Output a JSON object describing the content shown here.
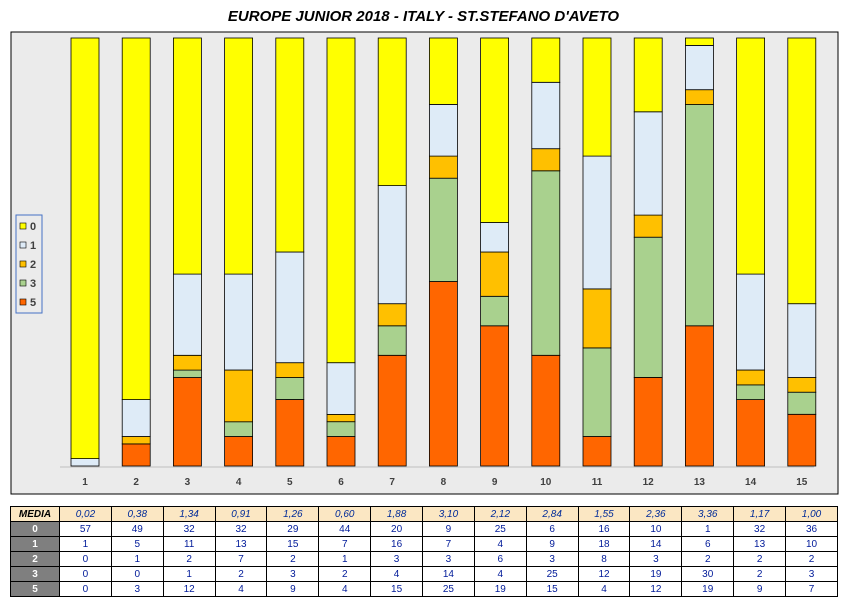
{
  "chart_data": {
    "type": "bar",
    "stacked": true,
    "title": "EUROPE JUNIOR 2018 - ITALY - ST.STEFANO D'AVETO",
    "categories": [
      "1",
      "2",
      "3",
      "4",
      "5",
      "6",
      "7",
      "8",
      "9",
      "10",
      "11",
      "12",
      "13",
      "14",
      "15"
    ],
    "ylim": [
      0,
      58
    ],
    "grid": false,
    "legend": "left",
    "series": [
      {
        "name": "5",
        "color": "#ff6600",
        "values": [
          0,
          3,
          12,
          4,
          9,
          4,
          15,
          25,
          19,
          15,
          4,
          12,
          19,
          9,
          7
        ]
      },
      {
        "name": "3",
        "color": "#a9d18e",
        "values": [
          0,
          0,
          1,
          2,
          3,
          2,
          4,
          14,
          4,
          25,
          12,
          19,
          30,
          2,
          3
        ]
      },
      {
        "name": "2",
        "color": "#ffc000",
        "values": [
          0,
          1,
          2,
          7,
          2,
          1,
          3,
          3,
          6,
          3,
          8,
          3,
          2,
          2,
          2
        ]
      },
      {
        "name": "1",
        "color": "#deebf7",
        "values": [
          1,
          5,
          11,
          13,
          15,
          7,
          16,
          7,
          4,
          9,
          18,
          14,
          6,
          13,
          10
        ]
      },
      {
        "name": "0",
        "color": "#ffff00",
        "values": [
          57,
          49,
          32,
          32,
          29,
          44,
          20,
          9,
          25,
          6,
          16,
          10,
          1,
          32,
          36
        ]
      }
    ]
  },
  "legend_items": [
    {
      "label": "0",
      "color": "#ffff00"
    },
    {
      "label": "1",
      "color": "#deebf7"
    },
    {
      "label": "2",
      "color": "#ffc000"
    },
    {
      "label": "3",
      "color": "#a9d18e"
    },
    {
      "label": "5",
      "color": "#ff6600"
    }
  ],
  "table": {
    "media_label": "MEDIA",
    "media": [
      "0,02",
      "0,38",
      "1,34",
      "0,91",
      "1,26",
      "0,60",
      "1,88",
      "3,10",
      "2,12",
      "2,84",
      "1,55",
      "2,36",
      "3,36",
      "1,17",
      "1,00"
    ],
    "rows": [
      {
        "label": "0",
        "values": [
          "57",
          "49",
          "32",
          "32",
          "29",
          "44",
          "20",
          "9",
          "25",
          "6",
          "16",
          "10",
          "1",
          "32",
          "36"
        ]
      },
      {
        "label": "1",
        "values": [
          "1",
          "5",
          "11",
          "13",
          "15",
          "7",
          "16",
          "7",
          "4",
          "9",
          "18",
          "14",
          "6",
          "13",
          "10"
        ]
      },
      {
        "label": "2",
        "values": [
          "0",
          "1",
          "2",
          "7",
          "2",
          "1",
          "3",
          "3",
          "6",
          "3",
          "8",
          "3",
          "2",
          "2",
          "2"
        ]
      },
      {
        "label": "3",
        "values": [
          "0",
          "0",
          "1",
          "2",
          "3",
          "2",
          "4",
          "14",
          "4",
          "25",
          "12",
          "19",
          "30",
          "2",
          "3"
        ]
      },
      {
        "label": "5",
        "values": [
          "0",
          "3",
          "12",
          "4",
          "9",
          "4",
          "15",
          "25",
          "19",
          "15",
          "4",
          "12",
          "19",
          "9",
          "7"
        ]
      }
    ]
  }
}
